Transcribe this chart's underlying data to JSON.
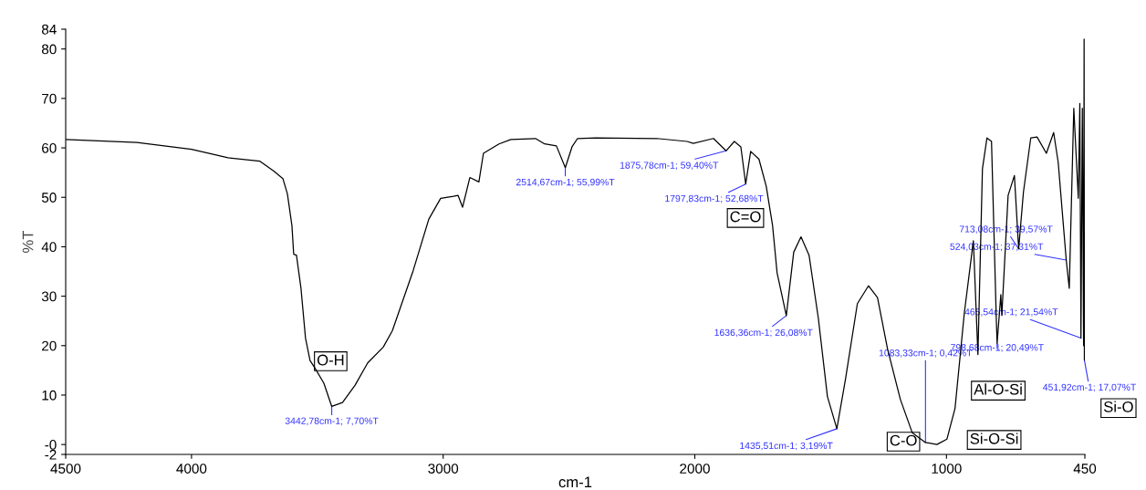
{
  "chart_data": {
    "type": "line",
    "xlabel": "cm-1",
    "ylabel": "%T",
    "xlim": [
      4500,
      450
    ],
    "xticks": [
      4500,
      4000,
      3000,
      2000,
      1000,
      450
    ],
    "ylim": [
      -2,
      84
    ],
    "yticks": [
      -2,
      {
        "value": 0,
        "label": "-0"
      },
      10,
      20,
      30,
      40,
      50,
      60,
      70,
      80,
      84
    ],
    "grid": false,
    "legend": false,
    "series": [
      {
        "color": "#000000",
        "x": [
          4500,
          4217,
          4000,
          3855,
          3728,
          3673,
          3637,
          3619,
          3601,
          3594,
          3583,
          3565,
          3547,
          3529,
          3510,
          3474,
          3442.78,
          3400,
          3350,
          3300,
          3238,
          3202,
          3119,
          3057,
          3010,
          2959,
          2941,
          2923,
          2894,
          2858,
          2840,
          2778,
          2731,
          2633,
          2597,
          2550,
          2514.67,
          2488,
          2466,
          2394,
          2151,
          2031,
          2006,
          1926,
          1875.78,
          1843,
          1817,
          1797.83,
          1778,
          1745,
          1716,
          1691,
          1673,
          1636.36,
          1607,
          1578,
          1546,
          1509,
          1473,
          1435.51,
          1401,
          1354,
          1310,
          1274,
          1234,
          1183,
          1136,
          1083.33,
          1038,
          998,
          966,
          929,
          893,
          875,
          857,
          839,
          821,
          802,
          798.68,
          784,
          780,
          755,
          730,
          713.08,
          694,
          665,
          640,
          603,
          574,
          556,
          524.03,
          512,
          494,
          476,
          470,
          465.54,
          460,
          455,
          453,
          451.92,
          450
        ],
        "values": [
          61.7,
          61.1,
          59.7,
          58,
          57.3,
          55.3,
          53.8,
          50.7,
          44.3,
          38.5,
          38.3,
          31.6,
          21.5,
          17,
          15.5,
          12.4,
          7.7,
          8.5,
          12,
          16.5,
          19.7,
          23,
          35.2,
          45.6,
          49.8,
          50.2,
          50.4,
          48,
          54,
          53.1,
          58.9,
          60.8,
          61.7,
          61.9,
          60.8,
          60.4,
          55.99,
          60.2,
          61.9,
          62,
          61.9,
          61.3,
          60.9,
          61.9,
          59.4,
          61.3,
          60.2,
          52.68,
          59.3,
          57.7,
          52.2,
          44.3,
          34.7,
          26.08,
          38.9,
          42,
          38.3,
          25.5,
          9.7,
          3.19,
          13.3,
          28.5,
          32.1,
          29.7,
          19.3,
          9.1,
          2.4,
          0.42,
          0,
          1.1,
          7.3,
          26.6,
          41.2,
          18.2,
          55.8,
          62,
          61.3,
          25.5,
          20.49,
          30.3,
          26.1,
          50.4,
          54.4,
          39.57,
          51.1,
          62,
          62.2,
          58.9,
          63.1,
          57.1,
          37.31,
          31.6,
          68,
          49.8,
          69,
          21.54,
          68,
          20,
          82,
          17.07,
          40
        ]
      }
    ],
    "annotations": [
      {
        "text": "3442,78cm-1; 7,70%T",
        "x": 3442.78,
        "y": 7.7
      },
      {
        "text": "2514,67cm-1; 55,99%T",
        "x": 2514.67,
        "y": 55.99
      },
      {
        "text": "1875,78cm-1; 59,40%T",
        "x": 1875.78,
        "y": 59.4
      },
      {
        "text": "1797,83cm-1; 52,68%T",
        "x": 1797.83,
        "y": 52.68
      },
      {
        "text": "1636,36cm-1; 26,08%T",
        "x": 1636.36,
        "y": 26.08
      },
      {
        "text": "1435,51cm-1; 3,19%T",
        "x": 1435.51,
        "y": 3.19
      },
      {
        "text": "1083,33cm-1; 0,42%T",
        "x": 1083.33,
        "y": 0.42
      },
      {
        "text": "798,68cm-1; 20,49%T",
        "x": 798.68,
        "y": 20.49
      },
      {
        "text": "713,08cm-1; 39,57%T",
        "x": 713.08,
        "y": 39.57
      },
      {
        "text": "524,03cm-1; 37,31%T",
        "x": 524.03,
        "y": 37.31
      },
      {
        "text": "465,54cm-1; 21,54%T",
        "x": 465.54,
        "y": 21.54
      },
      {
        "text": "451,92cm-1; 17,07%T",
        "x": 451.92,
        "y": 17.07
      },
      "O-H",
      "C=O",
      "C-O",
      "Si-O-Si",
      "Al-O-Si",
      "Si-O"
    ]
  }
}
